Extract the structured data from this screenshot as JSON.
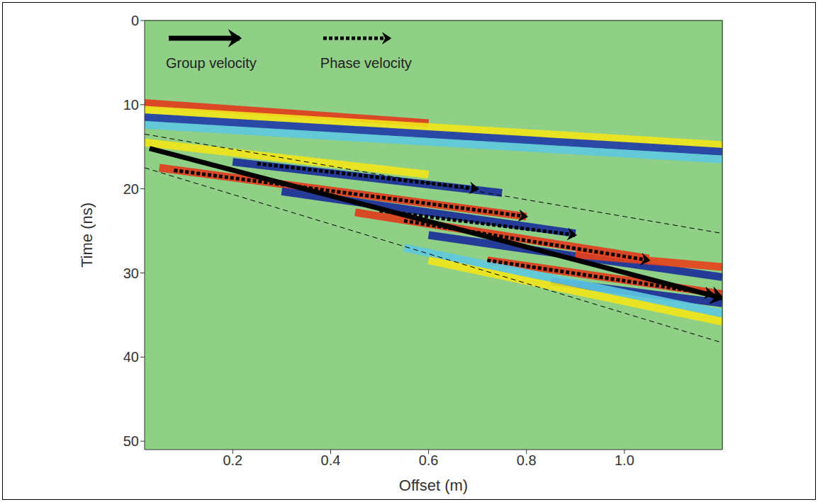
{
  "chart_data": {
    "type": "line",
    "xlabel": "Offset (m)",
    "ylabel": "Time (ns)",
    "xlim": [
      0.02,
      1.2
    ],
    "xticks": [
      0.2,
      0.4,
      0.6,
      0.8,
      {
        "value": 1,
        "label": "1.0"
      }
    ],
    "ylim": [
      0,
      51
    ],
    "yticks": [
      0,
      10,
      20,
      30,
      40,
      50
    ],
    "grid": false,
    "legend": "upper left",
    "series": [
      {
        "type": "band",
        "color": "#e23a1c",
        "x": [
          0.02,
          0.6
        ],
        "values": [
          9.8,
          12.2
        ]
      },
      {
        "type": "band",
        "color": "#f2e41b",
        "x": [
          0.02,
          1.2
        ],
        "values": [
          10.6,
          14.8
        ]
      },
      {
        "type": "band",
        "color": "#1f3aa8",
        "x": [
          0.02,
          1.2
        ],
        "values": [
          11.5,
          15.6
        ]
      },
      {
        "type": "band",
        "color": "#5fc8e0",
        "x": [
          0.02,
          1.2
        ],
        "values": [
          12.4,
          16.5
        ]
      },
      {
        "type": "band",
        "color": "#f2e41b",
        "x": [
          0.02,
          0.6
        ],
        "values": [
          14.5,
          18.3
        ]
      },
      {
        "type": "band",
        "color": "#1a2a9a",
        "x": [
          0.2,
          0.75
        ],
        "values": [
          16.8,
          20.5
        ]
      },
      {
        "type": "band",
        "color": "#e23a1c",
        "x": [
          0.05,
          0.8
        ],
        "values": [
          17.5,
          23.3
        ]
      },
      {
        "type": "band",
        "color": "#1a2a9a",
        "x": [
          0.3,
          0.9
        ],
        "values": [
          20.3,
          25.3
        ]
      },
      {
        "type": "band",
        "color": "#e23a1c",
        "x": [
          0.45,
          1.05
        ],
        "values": [
          22.8,
          28.3
        ]
      },
      {
        "type": "band",
        "color": "#1a2a9a",
        "x": [
          0.6,
          1.2
        ],
        "values": [
          25.5,
          30.5
        ]
      },
      {
        "type": "band",
        "color": "#e8401c",
        "x": [
          0.9,
          1.2
        ],
        "values": [
          27.8,
          29.3
        ]
      },
      {
        "type": "band",
        "color": "#e23a1c",
        "x": [
          0.72,
          1.2
        ],
        "values": [
          28.5,
          32.5
        ]
      },
      {
        "type": "band",
        "color": "#1a2a9a",
        "x": [
          0.85,
          1.2
        ],
        "values": [
          31.0,
          33.6
        ]
      },
      {
        "type": "band",
        "color": "#5fc8e0",
        "x": [
          0.55,
          1.2
        ],
        "values": [
          27.0,
          34.8
        ]
      },
      {
        "type": "band",
        "color": "#f2e41b",
        "x": [
          0.6,
          1.2
        ],
        "values": [
          28.5,
          35.8
        ]
      },
      {
        "type": "line",
        "color": "#000000",
        "line_style": "dashed",
        "x": [
          0.02,
          1.2
        ],
        "values": [
          13.5,
          25.3
        ]
      },
      {
        "type": "line",
        "color": "#000000",
        "line_style": "dashed",
        "x": [
          0.02,
          1.2
        ],
        "values": [
          17.5,
          38.3
        ]
      },
      {
        "type": "arrow",
        "name": "Phase velocity",
        "color": "#000000",
        "line_style": "dotted",
        "x": [
          0.25,
          0.7
        ],
        "values": [
          17.0,
          20.0
        ]
      },
      {
        "type": "arrow",
        "name": "Phase velocity",
        "color": "#000000",
        "line_style": "dotted",
        "x": [
          0.08,
          0.8
        ],
        "values": [
          17.8,
          23.3
        ]
      },
      {
        "type": "arrow",
        "name": "Phase velocity",
        "color": "#000000",
        "line_style": "dotted",
        "x": [
          0.5,
          0.9
        ],
        "values": [
          22.6,
          25.5
        ]
      },
      {
        "type": "arrow",
        "name": "Phase velocity",
        "color": "#000000",
        "line_style": "dotted",
        "x": [
          0.55,
          1.05
        ],
        "values": [
          23.8,
          28.5
        ]
      },
      {
        "type": "arrow",
        "name": "Phase velocity",
        "color": "#000000",
        "line_style": "dotted",
        "x": [
          0.72,
          1.18
        ],
        "values": [
          28.5,
          32.5
        ]
      },
      {
        "type": "arrow",
        "name": "Group velocity",
        "color": "#000000",
        "line_style": "solid",
        "x": [
          0.03,
          1.2
        ],
        "values": [
          15.2,
          33.0
        ]
      }
    ]
  }
}
